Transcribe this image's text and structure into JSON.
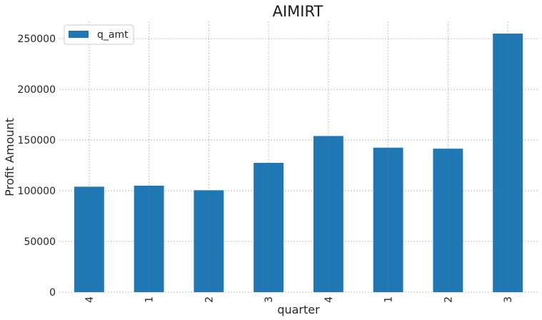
{
  "chart_data": {
    "type": "bar",
    "title": "AIMIRT",
    "xlabel": "quarter",
    "ylabel": "Profit Amount",
    "categories": [
      "4",
      "1",
      "2",
      "3",
      "4",
      "1",
      "2",
      "3"
    ],
    "series": [
      {
        "name": "q_amt",
        "color": "#1f77b4",
        "values": [
          104000,
          105000,
          100500,
          127500,
          154000,
          142500,
          141500,
          255000
        ]
      }
    ],
    "ylim": [
      0,
      267000
    ],
    "yticks": [
      0,
      50000,
      100000,
      150000,
      200000,
      250000
    ],
    "grid": true,
    "legend_position": "top-left",
    "xtick_rotation": "vertical"
  }
}
